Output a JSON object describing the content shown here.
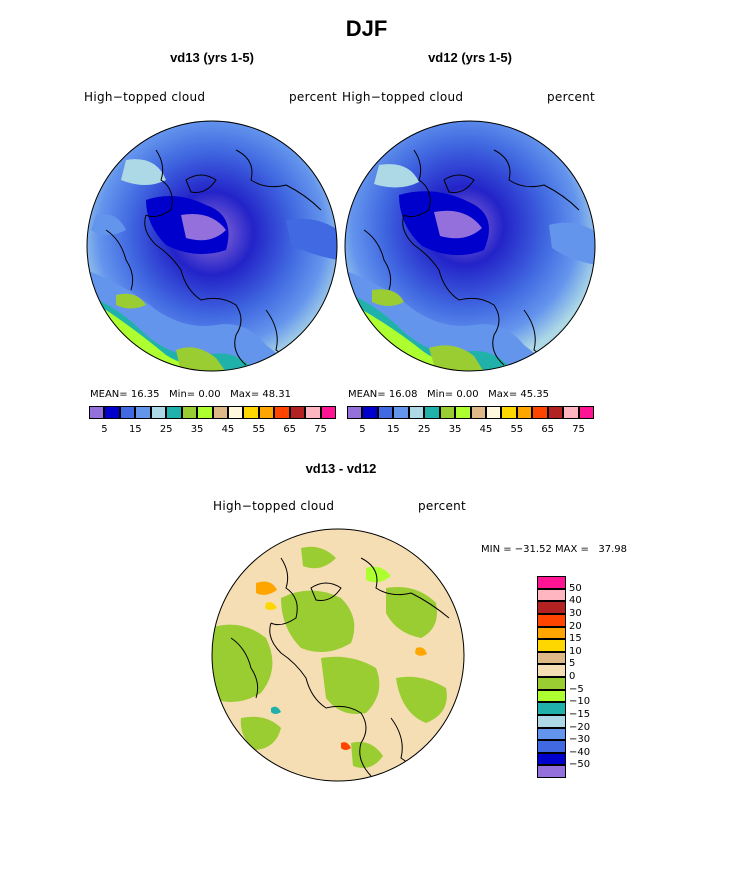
{
  "figure": {
    "title": "DJF",
    "variable": "High−topped cloud",
    "units": "percent"
  },
  "panels": [
    {
      "subtitle": "vd13 (yrs 1-5)",
      "stats": {
        "mean_label": "MEAN=",
        "mean": "16.35",
        "min_label": "Min=",
        "min": "0.00",
        "max_label": "Max=",
        "max": "48.31"
      }
    },
    {
      "subtitle": "vd12 (yrs 1-5)",
      "stats": {
        "mean_label": "MEAN=",
        "mean": "16.08",
        "min_label": "Min=",
        "min": "0.00",
        "max_label": "Max=",
        "max": "45.35"
      }
    }
  ],
  "horizontal_colorbar": {
    "colors": [
      "#9370db",
      "#0000cd",
      "#4169e1",
      "#6495ed",
      "#add8e6",
      "#20b2aa",
      "#9acd32",
      "#adff2f",
      "#deb887",
      "#fff8dc",
      "#ffd700",
      "#ffa500",
      "#ff4500",
      "#b22222",
      "#ffb6c1",
      "#ff1493"
    ],
    "tick_labels": [
      "5",
      "15",
      "25",
      "35",
      "45",
      "55",
      "65",
      "75"
    ]
  },
  "difference_panel": {
    "subtitle": "vd13 - vd12",
    "range_text": "MIN = −31.52 MAX =   37.98"
  },
  "vertical_colorbar": {
    "colors_top_to_bottom": [
      "#ff1493",
      "#ffb6c1",
      "#b22222",
      "#ff4500",
      "#ffa500",
      "#ffd700",
      "#deb887",
      "#f5deb3",
      "#9acd32",
      "#adff2f",
      "#20b2aa",
      "#add8e6",
      "#6495ed",
      "#4169e1",
      "#0000cd",
      "#9370db"
    ],
    "tick_labels_top_to_bottom": [
      "50",
      "40",
      "30",
      "20",
      "15",
      "10",
      "5",
      "0",
      "−5",
      "−10",
      "−15",
      "−20",
      "−30",
      "−40",
      "−50"
    ]
  }
}
